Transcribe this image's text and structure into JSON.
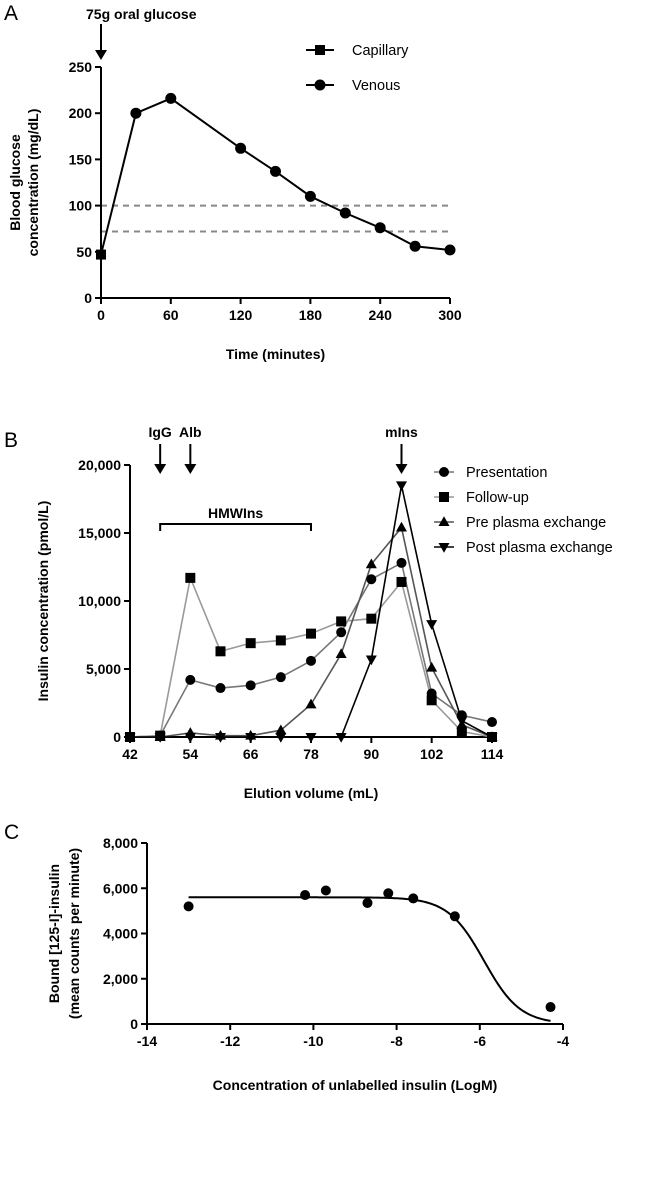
{
  "chart_data": [
    {
      "panel": "A",
      "type": "line",
      "xlabel": "Time (minutes)",
      "ylabel_lines": [
        "Blood glucose",
        "concentration (mg/dL)"
      ],
      "xlim": [
        0,
        300
      ],
      "ylim": [
        0,
        250
      ],
      "xticks": [
        0,
        60,
        120,
        180,
        240,
        300
      ],
      "yticks": [
        0,
        50,
        100,
        150,
        200,
        250
      ],
      "annotation": "75g oral glucose",
      "annotation_x": 0,
      "reference_lines": [
        100,
        72
      ],
      "legend_position": "top-right",
      "series": [
        {
          "name": "Capillary",
          "marker": "square",
          "x": [
            0
          ],
          "y": [
            47
          ]
        },
        {
          "name": "Venous",
          "marker": "circle",
          "x": [
            30,
            60,
            120,
            150,
            180,
            210,
            240,
            270,
            300
          ],
          "y": [
            200,
            216,
            162,
            137,
            110,
            92,
            76,
            56,
            52
          ]
        }
      ]
    },
    {
      "panel": "B",
      "type": "line",
      "xlabel": "Elution volume (mL)",
      "ylabel": "Insulin concentration (pmol/L)",
      "xlim": [
        42,
        114
      ],
      "ylim": [
        0,
        20000
      ],
      "xticks": [
        42,
        54,
        66,
        78,
        90,
        102,
        114
      ],
      "yticks": [
        0,
        5000,
        10000,
        15000,
        20000
      ],
      "ytick_labels": [
        "0",
        "5,000",
        "10,000",
        "15,000",
        "20,000"
      ],
      "legend_position": "top-right",
      "markers_annotations": [
        {
          "label": "IgG",
          "x": 48
        },
        {
          "label": "Alb",
          "x": 54
        },
        {
          "label": "mIns",
          "x": 96
        }
      ],
      "bracket": {
        "label": "HMWIns",
        "x_start": 48,
        "x_end": 78
      },
      "series": [
        {
          "name": "Presentation",
          "marker": "circle",
          "color": "#777777",
          "x": [
            42,
            48,
            54,
            60,
            66,
            72,
            78,
            84,
            90,
            96,
            102,
            108,
            114
          ],
          "y": [
            0,
            100,
            4200,
            3600,
            3800,
            4400,
            5600,
            7700,
            11600,
            12800,
            3200,
            1600,
            1100
          ]
        },
        {
          "name": "Follow-up",
          "marker": "square",
          "color": "#999999",
          "x": [
            42,
            48,
            54,
            60,
            66,
            72,
            78,
            84,
            90,
            96,
            102,
            108,
            114
          ],
          "y": [
            0,
            100,
            11700,
            6300,
            6900,
            7100,
            7600,
            8500,
            8700,
            11400,
            2700,
            400,
            0
          ]
        },
        {
          "name": "Pre plasma exchange",
          "marker": "triangle-up",
          "color": "#555555",
          "x": [
            42,
            48,
            54,
            60,
            66,
            72,
            78,
            84,
            90,
            96,
            102,
            108,
            114
          ],
          "y": [
            0,
            0,
            300,
            100,
            100,
            500,
            2400,
            6100,
            12700,
            15400,
            5100,
            900,
            0
          ]
        },
        {
          "name": "Post plasma exchange",
          "marker": "triangle-down",
          "color": "#000000",
          "x": [
            42,
            48,
            54,
            60,
            66,
            72,
            78,
            84,
            90,
            96,
            102,
            108,
            114
          ],
          "y": [
            0,
            0,
            0,
            0,
            0,
            0,
            0,
            0,
            5700,
            18500,
            8300,
            1200,
            0
          ]
        }
      ]
    },
    {
      "panel": "C",
      "type": "scatter",
      "xlabel": "Concentration of unlabelled insulin (LogM)",
      "ylabel_lines": [
        "Bound [125-I]-insulin",
        "(mean counts per minute)"
      ],
      "xlim": [
        -14,
        -4
      ],
      "ylim": [
        0,
        8000
      ],
      "xticks": [
        -14,
        -12,
        -10,
        -8,
        -6,
        -4
      ],
      "yticks": [
        0,
        2000,
        4000,
        6000,
        8000
      ],
      "ytick_labels": [
        "0",
        "2,000",
        "4,000",
        "6,000",
        "8,000"
      ],
      "series": [
        {
          "name": "",
          "marker": "circle",
          "x": [
            -13,
            -10.2,
            -9.7,
            -8.7,
            -8.2,
            -7.6,
            -6.6,
            -4.3
          ],
          "y": [
            5200,
            5700,
            5900,
            5350,
            5780,
            5550,
            4760,
            750
          ]
        }
      ],
      "fit": {
        "type": "sigmoid",
        "top": 5600,
        "bottom": 0,
        "logIC50": -5.9,
        "hill": -1,
        "x_range": [
          -13,
          -4.3
        ]
      }
    }
  ],
  "panels": {
    "A": "A",
    "B": "B",
    "C": "C"
  }
}
